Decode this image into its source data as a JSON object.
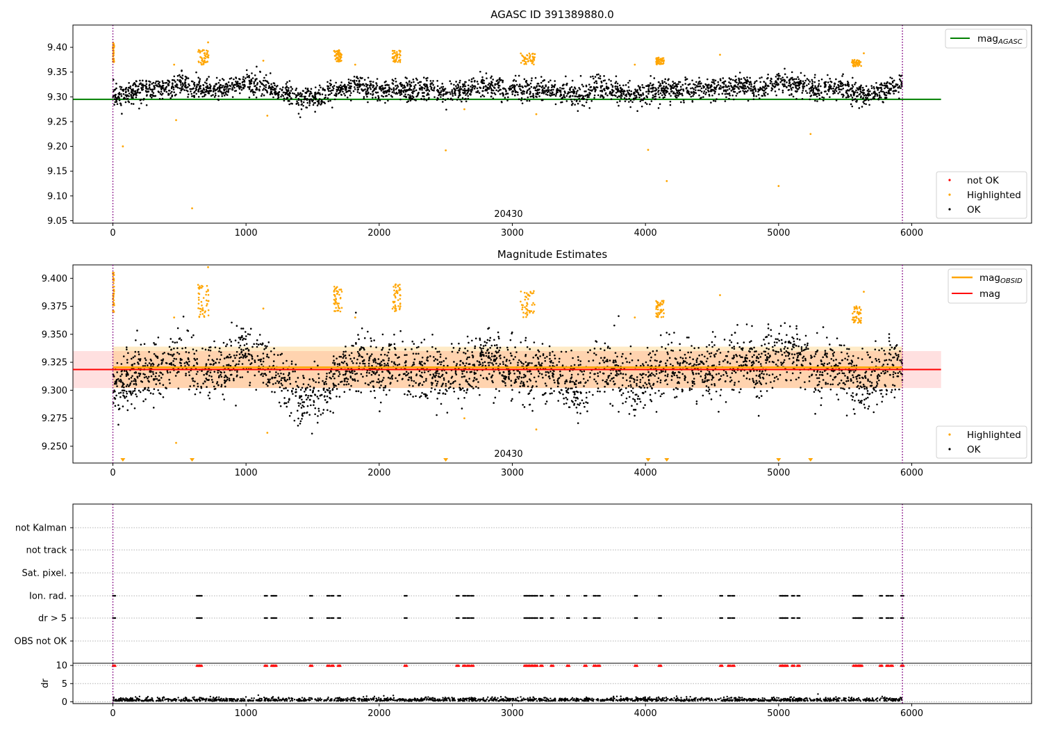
{
  "chart_data": [
    {
      "type": "scatter",
      "title": "AGASC ID 391389880.0",
      "xlim": [
        -300,
        6900
      ],
      "ylim": [
        9.045,
        9.445
      ],
      "xticks": [
        0,
        1000,
        2000,
        3000,
        4000,
        5000,
        6000
      ],
      "yticks": [
        "9.05",
        "9.10",
        "9.15",
        "9.20",
        "9.25",
        "9.30",
        "9.35",
        "9.40"
      ],
      "grid": false,
      "obsid_label": "20430",
      "obsid_boundaries": [
        0,
        5930
      ],
      "reference_lines": [
        {
          "name": "mag",
          "subscript": "AGASC",
          "value": 9.295,
          "x_range": [
            -300,
            6220
          ],
          "color": "#008000"
        }
      ],
      "legend_top": "top-right",
      "legend_bottom": "bottom-right",
      "series": [
        {
          "name": "not OK",
          "color": "#ff0000",
          "points": []
        },
        {
          "name": "Highlighted",
          "color": "#ffa500",
          "segments": [
            [
              0,
              10,
              9.37,
              9.41
            ],
            [
              640,
              720,
              9.365,
              9.395
            ],
            [
              1660,
              1720,
              9.37,
              9.395
            ],
            [
              2100,
              2160,
              9.37,
              9.395
            ],
            [
              3060,
              3170,
              9.365,
              9.39
            ],
            [
              4080,
              4140,
              9.365,
              9.38
            ],
            [
              5550,
              5620,
              9.36,
              9.375
            ]
          ],
          "outliers": [
            [
              5,
              9.405
            ],
            [
              75,
              9.2
            ],
            [
              460,
              9.365
            ],
            [
              475,
              9.253
            ],
            [
              595,
              9.075
            ],
            [
              715,
              9.41
            ],
            [
              1130,
              9.373
            ],
            [
              1160,
              9.262
            ],
            [
              1820,
              9.365
            ],
            [
              2500,
              9.192
            ],
            [
              2640,
              9.275
            ],
            [
              3180,
              9.265
            ],
            [
              3920,
              9.365
            ],
            [
              4020,
              9.193
            ],
            [
              4160,
              9.13
            ],
            [
              4560,
              9.385
            ],
            [
              5000,
              9.12
            ],
            [
              5240,
              9.225
            ],
            [
              5640,
              9.388
            ]
          ]
        },
        {
          "name": "OK",
          "color": "#000000",
          "n_points": 3000,
          "baseline": 9.315,
          "jitter": 0.018
        }
      ]
    },
    {
      "type": "scatter",
      "title": "Magnitude Estimates",
      "xlim": [
        -300,
        6900
      ],
      "ylim": [
        9.235,
        9.412
      ],
      "xticks": [
        0,
        1000,
        2000,
        3000,
        4000,
        5000,
        6000
      ],
      "yticks": [
        "9.250",
        "9.275",
        "9.300",
        "9.325",
        "9.350",
        "9.375",
        "9.400"
      ],
      "grid": false,
      "obsid_label": "20430",
      "obsid_boundaries": [
        0,
        5930
      ],
      "reference_lines": [
        {
          "name": "mag",
          "subscript": "OBSID",
          "value": 9.3205,
          "band": [
            9.302,
            9.339
          ],
          "x_range": [
            0,
            5930
          ],
          "color": "#ffa500"
        },
        {
          "name": "mag",
          "subscript": "",
          "value": 9.3185,
          "band": [
            9.302,
            9.335
          ],
          "x_range": [
            -300,
            6220
          ],
          "color": "#ff0000"
        }
      ],
      "legend": "top-right",
      "legend_bottom": "bottom-right",
      "series": [
        {
          "name": "Highlighted",
          "color": "#ffa500",
          "lower_limit_markers_x": [
            75,
            595,
            2500,
            4020,
            4160,
            5000,
            5240
          ]
        },
        {
          "name": "OK",
          "color": "#000000",
          "n_points": 3000,
          "baseline": 9.318,
          "jitter": 0.022
        }
      ]
    },
    {
      "type": "scatter",
      "title": "",
      "xlim": [
        -300,
        6900
      ],
      "xticks": [
        0,
        1000,
        2000,
        3000,
        4000,
        5000,
        6000
      ],
      "grid": "dotted horizontal",
      "flag_rows": [
        "not Kalman",
        "not track",
        "Sat. pixel.",
        "Ion. rad.",
        "dr > 5",
        "OBS not OK"
      ],
      "flag_events": {
        "Ion. rad.": [
          0,
          630,
          650,
          1140,
          1190,
          1210,
          1480,
          1610,
          1640,
          1690,
          2190,
          2580,
          2630,
          2660,
          2690,
          3090,
          3110,
          3130,
          3150,
          3170,
          3210,
          3290,
          3410,
          3540,
          3610,
          3640,
          3920,
          4100,
          4560,
          4620,
          4650,
          5010,
          5030,
          5050,
          5100,
          5140,
          5560,
          5580,
          5600,
          5610,
          5760,
          5810,
          5840,
          5920
        ],
        "dr > 5": [
          0,
          630,
          650,
          1140,
          1190,
          1210,
          1480,
          1610,
          1640,
          1690,
          2190,
          2580,
          2630,
          2660,
          2690,
          3090,
          3110,
          3130,
          3150,
          3170,
          3210,
          3290,
          3410,
          3540,
          3610,
          3640,
          3920,
          4100,
          4560,
          4620,
          4650,
          5010,
          5030,
          5050,
          5100,
          5140,
          5560,
          5580,
          5600,
          5610,
          5760,
          5810,
          5840,
          5920
        ]
      },
      "dr_panel": {
        "ylabel": "dr",
        "yticks": [
          "0",
          "5",
          "10"
        ],
        "ylim": [
          -0.5,
          10.6
        ],
        "clip_value": 10,
        "clipped_marker_color": "#ff0000",
        "points_color": "#000000",
        "typical_dr": 0.6
      },
      "obsid_boundaries": [
        0,
        5930
      ]
    }
  ]
}
